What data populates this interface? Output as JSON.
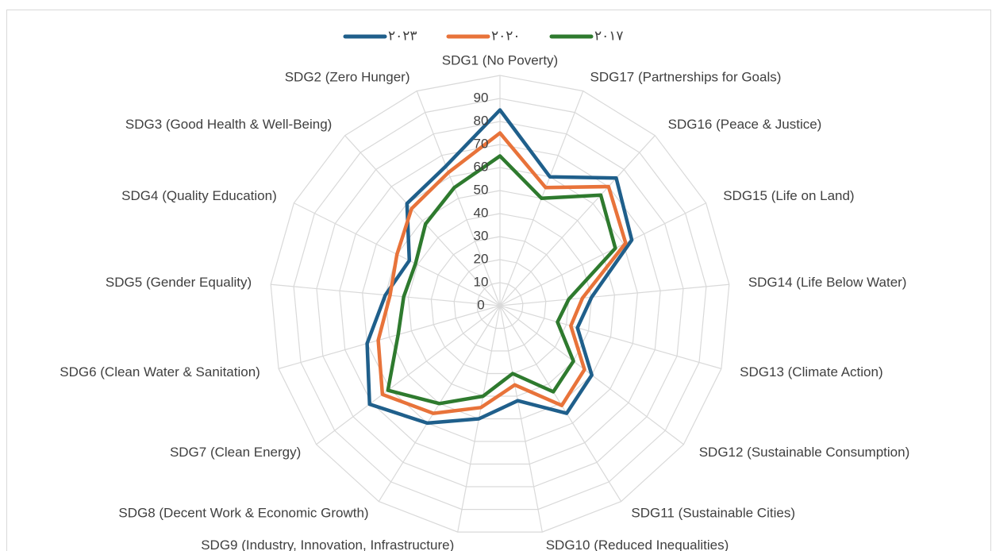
{
  "chart_data": {
    "type": "radar",
    "categories": [
      "SDG1 (No Poverty)",
      "SDG2 (Zero Hunger)",
      "SDG3 (Good Health & Well-Being)",
      "SDG4 (Quality Education)",
      "SDG5 (Gender Equality)",
      "SDG6 (Clean Water & Sanitation)",
      "SDG7 (Clean Energy)",
      "SDG8 (Decent Work & Economic Growth)",
      "SDG9 (Industry, Innovation, Infrastructure)",
      "SDG10 (Reduced Inequalities)",
      "SDG11 (Sustainable Cities)",
      "SDG12 (Sustainable Consumption)",
      "SDG13 (Climate Action)",
      "SDG14 (Life Below Water)",
      "SDG15 (Life on Land)",
      "SDG16 (Peace & Justice)",
      "SDG17 (Partnerships for Goals)"
    ],
    "series": [
      {
        "name": "٢٠٢٣",
        "color": "#1f5f8b",
        "values": [
          85,
          65,
          60,
          44,
          50,
          60,
          71,
          60,
          50,
          42,
          55,
          50,
          35,
          40,
          64,
          75,
          60
        ]
      },
      {
        "name": "٢٠٢٠",
        "color": "#e8733a",
        "values": [
          75,
          62,
          57,
          50,
          48,
          55,
          64,
          55,
          45,
          35,
          51,
          46,
          32,
          36,
          61,
          70,
          55
        ]
      },
      {
        "name": "٢٠١٧",
        "color": "#2e7a2e",
        "values": [
          65,
          55,
          48,
          41,
          42,
          46,
          61,
          50,
          40,
          30,
          44,
          40,
          26,
          30,
          56,
          65,
          50
        ]
      }
    ],
    "ylim": [
      0,
      100
    ],
    "yticks": [
      0,
      10,
      20,
      30,
      40,
      50,
      60,
      70,
      80,
      90
    ],
    "grid": true,
    "legend": "top"
  }
}
